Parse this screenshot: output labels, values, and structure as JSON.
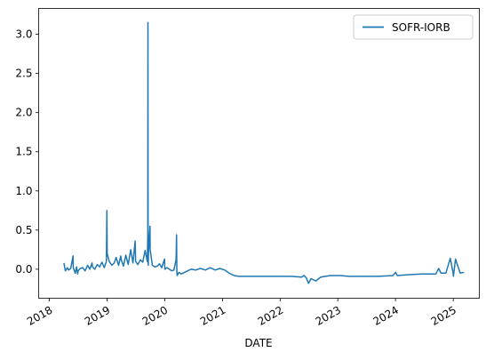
{
  "chart_data": {
    "type": "line",
    "title": "",
    "xlabel": "DATE",
    "ylabel": "",
    "x_ticks": [
      "2018",
      "2019",
      "2020",
      "2021",
      "2022",
      "2023",
      "2024",
      "2025"
    ],
    "y_ticks": [
      "0.0",
      "0.5",
      "1.0",
      "1.5",
      "2.0",
      "2.5",
      "3.0"
    ],
    "xlim": [
      "2017-10-25",
      "2025-06-15"
    ],
    "ylim": [
      -0.37,
      3.33
    ],
    "grid": false,
    "legend": {
      "position": "top-right",
      "entries": [
        "SOFR-IORB"
      ]
    },
    "series": [
      {
        "name": "SOFR-IORB",
        "color": "#1f77b4",
        "x": [
          "2018-04-03",
          "2018-04-12",
          "2018-04-25",
          "2018-05-02",
          "2018-05-16",
          "2018-05-31",
          "2018-06-01",
          "2018-06-14",
          "2018-06-22",
          "2018-06-29",
          "2018-07-02",
          "2018-07-16",
          "2018-07-31",
          "2018-08-15",
          "2018-08-31",
          "2018-09-14",
          "2018-09-28",
          "2018-10-01",
          "2018-10-15",
          "2018-10-31",
          "2018-11-15",
          "2018-11-30",
          "2018-12-14",
          "2018-12-28",
          "2018-12-31",
          "2019-01-02",
          "2019-01-15",
          "2019-01-31",
          "2019-02-15",
          "2019-02-28",
          "2019-03-15",
          "2019-03-29",
          "2019-04-01",
          "2019-04-15",
          "2019-04-30",
          "2019-05-15",
          "2019-05-31",
          "2019-06-14",
          "2019-06-28",
          "2019-07-01",
          "2019-07-15",
          "2019-07-31",
          "2019-08-15",
          "2019-08-30",
          "2019-09-13",
          "2019-09-16",
          "2019-09-17",
          "2019-09-18",
          "2019-09-19",
          "2019-09-20",
          "2019-09-30",
          "2019-10-01",
          "2019-10-15",
          "2019-10-31",
          "2019-11-15",
          "2019-11-29",
          "2019-12-13",
          "2019-12-31",
          "2020-01-02",
          "2020-01-15",
          "2020-01-31",
          "2020-02-14",
          "2020-02-28",
          "2020-03-13",
          "2020-03-16",
          "2020-03-17",
          "2020-03-18",
          "2020-03-20",
          "2020-03-31",
          "2020-04-15",
          "2020-05-15",
          "2020-06-15",
          "2020-07-15",
          "2020-08-14",
          "2020-09-15",
          "2020-10-15",
          "2020-11-16",
          "2020-12-15",
          "2021-01-15",
          "2021-02-12",
          "2021-03-15",
          "2021-04-15",
          "2021-06-15",
          "2021-09-15",
          "2021-12-15",
          "2022-03-15",
          "2022-05-16",
          "2022-06-01",
          "2022-06-15",
          "2022-06-30",
          "2022-07-15",
          "2022-08-15",
          "2022-09-15",
          "2022-10-14",
          "2022-11-15",
          "2022-12-15",
          "2023-01-13",
          "2023-03-15",
          "2023-06-15",
          "2023-09-15",
          "2023-12-15",
          "2024-01-02",
          "2024-01-12",
          "2024-03-15",
          "2024-06-14",
          "2024-09-13",
          "2024-10-01",
          "2024-10-15",
          "2024-11-15",
          "2024-12-13",
          "2024-12-31",
          "2025-01-02",
          "2025-01-15",
          "2025-02-14",
          "2025-03-10"
        ],
        "values": [
          0.08,
          -0.02,
          0.02,
          -0.01,
          0.01,
          0.17,
          0.02,
          -0.05,
          0.03,
          -0.06,
          -0.02,
          0.01,
          0.02,
          -0.02,
          0.05,
          0.0,
          0.08,
          0.03,
          0.0,
          0.06,
          0.03,
          0.09,
          0.02,
          0.1,
          0.75,
          0.2,
          0.1,
          0.05,
          0.08,
          0.15,
          0.05,
          0.17,
          0.12,
          0.04,
          0.18,
          0.06,
          0.25,
          0.08,
          0.36,
          0.1,
          0.06,
          0.12,
          0.09,
          0.24,
          0.1,
          0.45,
          3.15,
          0.1,
          0.05,
          0.2,
          0.55,
          0.25,
          0.05,
          0.03,
          0.04,
          0.07,
          0.02,
          0.13,
          0.0,
          0.02,
          0.0,
          -0.02,
          -0.01,
          0.12,
          0.44,
          0.2,
          -0.03,
          -0.08,
          -0.04,
          -0.06,
          -0.03,
          0.0,
          -0.01,
          0.01,
          -0.01,
          0.02,
          -0.01,
          0.01,
          -0.01,
          -0.05,
          -0.08,
          -0.09,
          -0.09,
          -0.09,
          -0.09,
          -0.09,
          -0.1,
          -0.08,
          -0.11,
          -0.18,
          -0.12,
          -0.15,
          -0.1,
          -0.09,
          -0.08,
          -0.08,
          -0.08,
          -0.09,
          -0.09,
          -0.09,
          -0.08,
          -0.04,
          -0.08,
          -0.07,
          -0.06,
          -0.06,
          0.01,
          -0.05,
          -0.05,
          0.14,
          -0.05,
          -0.09,
          0.13,
          -0.05,
          -0.04
        ]
      }
    ]
  }
}
